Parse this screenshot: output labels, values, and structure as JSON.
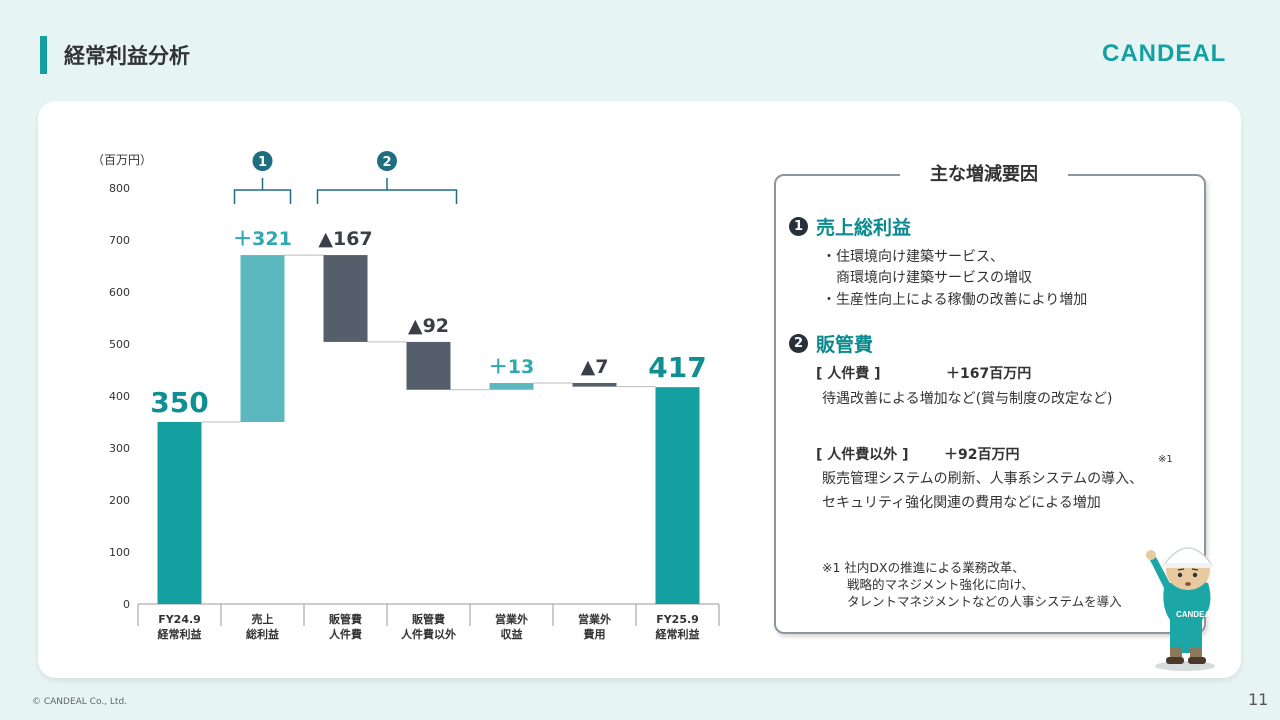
{
  "header": {
    "title": "経常利益分析",
    "logo": "CANDEAL"
  },
  "chart_data": {
    "type": "waterfall",
    "ylabel": "（百万円）",
    "ylim": [
      0,
      800
    ],
    "yticks": [
      0,
      100,
      200,
      300,
      400,
      500,
      600,
      700,
      800
    ],
    "categories": [
      [
        "FY24.9",
        "経常利益"
      ],
      [
        "売上",
        "総利益"
      ],
      [
        "販管費",
        "人件費"
      ],
      [
        "販管費",
        "人件費以外"
      ],
      [
        "営業外",
        "収益"
      ],
      [
        "営業外",
        "費用"
      ],
      [
        "FY25.9",
        "経常利益"
      ]
    ],
    "bars": [
      {
        "kind": "total",
        "from": 0,
        "to": 350,
        "label": "350",
        "color": "#14a0a0"
      },
      {
        "kind": "increase",
        "from": 350,
        "to": 671,
        "label": "＋321",
        "color": "#5bb8bf"
      },
      {
        "kind": "decrease",
        "from": 671,
        "to": 504,
        "label": "▲167",
        "color": "#545f6b"
      },
      {
        "kind": "decrease",
        "from": 504,
        "to": 412,
        "label": "▲92",
        "color": "#545f6b"
      },
      {
        "kind": "increase",
        "from": 412,
        "to": 425,
        "label": "＋13",
        "color": "#5bb8bf"
      },
      {
        "kind": "decrease",
        "from": 425,
        "to": 418,
        "label": "▲7",
        "color": "#545f6b"
      },
      {
        "kind": "total",
        "from": 0,
        "to": 417,
        "label": "417",
        "color": "#14a0a0"
      }
    ],
    "brackets": [
      {
        "label": "1",
        "start": 1,
        "end": 1
      },
      {
        "label": "2",
        "start": 2,
        "end": 3
      }
    ],
    "grid": false
  },
  "panel": {
    "title": "主な増減要因",
    "sec1": {
      "num": "1",
      "title": "売上総利益",
      "lines": [
        "・住環境向け建築サービス、",
        "　商環境向け建築サービスの増収",
        "・生産性向上による稼働の改善により増加"
      ]
    },
    "sec2": {
      "num": "2",
      "title": "販管費",
      "sub1_label": "[ 人件費 ]",
      "sub1_value": "＋167百万円",
      "sub1_text": "待遇改善による増加など(賞与制度の改定など)",
      "sub2_label": "[ 人件費以外 ]",
      "sub2_value": "＋92百万円",
      "sub2_line1": "販売管理システムの刷新、人事系システムの導入、",
      "sub2_line2": "セキュリティ強化関連の費用などによる増加",
      "sup": "※1"
    },
    "notes": [
      "※1 社内DXの推進による業務改革、",
      "　　戦略的マネジメント強化に向け、",
      "　　タレントマネジメントなどの人事システムを導入"
    ]
  },
  "footer": {
    "copyright": "© CANDEAL Co., Ltd.",
    "page": "11"
  }
}
